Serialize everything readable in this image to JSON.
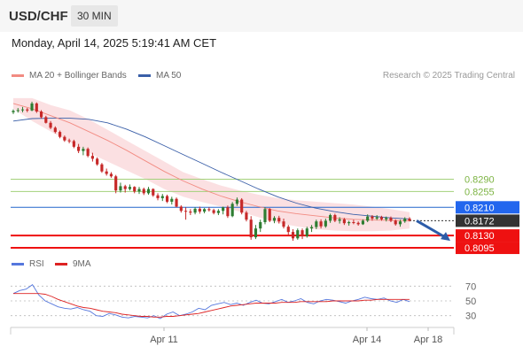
{
  "header": {
    "pair": "USD/CHF",
    "timeframe": "30 MIN"
  },
  "datetime": "Monday, April 14, 2025 5:19:41 AM CET",
  "legend": {
    "ma20_label": "MA 20 + Bollinger Bands",
    "ma50_label": "MA 50",
    "credit": "Research © 2025 Trading Central"
  },
  "rsi_legend": {
    "rsi_label": "RSI",
    "ma9_label": "9MA"
  },
  "colors": {
    "up": "#2e7d32",
    "down": "#c62828",
    "ma20": "#f28b82",
    "ma50": "#3a5fa8",
    "band": "#fadadd",
    "support": "#ee1111",
    "resistance": "#a3d17a",
    "pivot": "#2266cc",
    "last": "#333333",
    "rsi": "#5577dd",
    "rsi_ma": "#dd2222",
    "arrow": "#2d5ca8"
  },
  "chart_data": [
    {
      "type": "candlestick",
      "title": "USD/CHF",
      "timeframe": "30 MIN",
      "ylim": [
        0.8075,
        0.856
      ],
      "x_ticks": [
        "Apr 11",
        "Apr 14",
        "Apr 18"
      ],
      "candles_ohlc": [
        [
          0.848,
          0.8488,
          0.8475,
          0.8484
        ],
        [
          0.8484,
          0.8492,
          0.8479,
          0.8486
        ],
        [
          0.8486,
          0.8495,
          0.848,
          0.8488
        ],
        [
          0.8488,
          0.8492,
          0.848,
          0.8485
        ],
        [
          0.8485,
          0.851,
          0.8483,
          0.8505
        ],
        [
          0.8505,
          0.8508,
          0.8478,
          0.8482
        ],
        [
          0.8482,
          0.8486,
          0.8462,
          0.8466
        ],
        [
          0.8466,
          0.847,
          0.8448,
          0.845
        ],
        [
          0.845,
          0.8455,
          0.8432,
          0.8436
        ],
        [
          0.8436,
          0.844,
          0.842,
          0.8424
        ],
        [
          0.8424,
          0.8428,
          0.8406,
          0.841
        ],
        [
          0.841,
          0.8414,
          0.8396,
          0.84
        ],
        [
          0.84,
          0.8405,
          0.8392,
          0.8398
        ],
        [
          0.8398,
          0.8402,
          0.8378,
          0.8382
        ],
        [
          0.8382,
          0.839,
          0.8364,
          0.837
        ],
        [
          0.837,
          0.8382,
          0.8358,
          0.8376
        ],
        [
          0.8376,
          0.838,
          0.8352,
          0.8356
        ],
        [
          0.8356,
          0.8365,
          0.834,
          0.8348
        ],
        [
          0.8348,
          0.8352,
          0.8328,
          0.8332
        ],
        [
          0.8332,
          0.8336,
          0.8308,
          0.8312
        ],
        [
          0.8312,
          0.832,
          0.83,
          0.8305
        ],
        [
          0.8305,
          0.831,
          0.8294,
          0.8298
        ],
        [
          0.8298,
          0.8302,
          0.825,
          0.8258
        ],
        [
          0.8258,
          0.828,
          0.8252,
          0.827
        ],
        [
          0.827,
          0.8274,
          0.8252,
          0.8262
        ],
        [
          0.8262,
          0.8275,
          0.8258,
          0.8268
        ],
        [
          0.8268,
          0.827,
          0.825,
          0.8255
        ],
        [
          0.8255,
          0.8268,
          0.8248,
          0.8262
        ],
        [
          0.8262,
          0.8266,
          0.8245,
          0.825
        ],
        [
          0.825,
          0.8268,
          0.8246,
          0.8262
        ],
        [
          0.8262,
          0.8264,
          0.824,
          0.8244
        ],
        [
          0.8244,
          0.825,
          0.823,
          0.8236
        ],
        [
          0.8236,
          0.8248,
          0.8228,
          0.8242
        ],
        [
          0.8242,
          0.8246,
          0.8222,
          0.8226
        ],
        [
          0.8226,
          0.824,
          0.8218,
          0.8234
        ],
        [
          0.8234,
          0.8238,
          0.821,
          0.8212
        ],
        [
          0.8212,
          0.8216,
          0.8195,
          0.82
        ],
        [
          0.82,
          0.821,
          0.8175,
          0.8198
        ],
        [
          0.8198,
          0.8205,
          0.8188,
          0.8195
        ],
        [
          0.8195,
          0.821,
          0.819,
          0.8206
        ],
        [
          0.8206,
          0.8212,
          0.8192,
          0.8198
        ],
        [
          0.8198,
          0.8208,
          0.8193,
          0.8205
        ],
        [
          0.8205,
          0.821,
          0.8198,
          0.8202
        ],
        [
          0.8202,
          0.8206,
          0.819,
          0.8194
        ],
        [
          0.8194,
          0.8205,
          0.8188,
          0.82
        ],
        [
          0.82,
          0.8212,
          0.819,
          0.821
        ],
        [
          0.821,
          0.8215,
          0.818,
          0.8185
        ],
        [
          0.8185,
          0.8225,
          0.8182,
          0.822
        ],
        [
          0.822,
          0.8238,
          0.8214,
          0.8232
        ],
        [
          0.8232,
          0.8236,
          0.819,
          0.8195
        ],
        [
          0.8195,
          0.82,
          0.817,
          0.8175
        ],
        [
          0.8175,
          0.8185,
          0.8118,
          0.8125
        ],
        [
          0.8125,
          0.816,
          0.812,
          0.815
        ],
        [
          0.815,
          0.8175,
          0.814,
          0.8168
        ],
        [
          0.8168,
          0.821,
          0.8162,
          0.8205
        ],
        [
          0.8205,
          0.8208,
          0.8168,
          0.8172
        ],
        [
          0.8172,
          0.8185,
          0.8165,
          0.818
        ],
        [
          0.818,
          0.8186,
          0.8164,
          0.817
        ],
        [
          0.817,
          0.8178,
          0.815,
          0.8155
        ],
        [
          0.8155,
          0.816,
          0.813,
          0.814
        ],
        [
          0.814,
          0.8148,
          0.8115,
          0.8122
        ],
        [
          0.8122,
          0.815,
          0.8118,
          0.8145
        ],
        [
          0.8145,
          0.815,
          0.812,
          0.8128
        ],
        [
          0.8128,
          0.8155,
          0.8124,
          0.815
        ],
        [
          0.815,
          0.816,
          0.814,
          0.8154
        ],
        [
          0.8154,
          0.8175,
          0.8148,
          0.817
        ],
        [
          0.817,
          0.8176,
          0.815,
          0.8156
        ],
        [
          0.8156,
          0.8178,
          0.8152,
          0.8172
        ],
        [
          0.8172,
          0.8192,
          0.8166,
          0.8188
        ],
        [
          0.8188,
          0.8192,
          0.8168,
          0.8172
        ],
        [
          0.8172,
          0.8182,
          0.8164,
          0.8176
        ],
        [
          0.8176,
          0.818,
          0.816,
          0.8165
        ],
        [
          0.8165,
          0.8172,
          0.8158,
          0.8168
        ],
        [
          0.8168,
          0.8175,
          0.8162,
          0.8166
        ],
        [
          0.8166,
          0.817,
          0.8158,
          0.8162
        ],
        [
          0.8162,
          0.8176,
          0.816,
          0.8172
        ],
        [
          0.8172,
          0.819,
          0.8168,
          0.8184
        ],
        [
          0.8184,
          0.8188,
          0.8172,
          0.8178
        ],
        [
          0.8178,
          0.8188,
          0.8174,
          0.8182
        ],
        [
          0.8182,
          0.8186,
          0.8172,
          0.8176
        ],
        [
          0.8176,
          0.8184,
          0.817,
          0.818
        ],
        [
          0.818,
          0.8184,
          0.8168,
          0.8172
        ],
        [
          0.8172,
          0.8176,
          0.8158,
          0.8162
        ],
        [
          0.8162,
          0.8175,
          0.8155,
          0.817
        ],
        [
          0.817,
          0.8182,
          0.8166,
          0.8178
        ],
        [
          0.8178,
          0.8182,
          0.817,
          0.8172
        ]
      ],
      "ma20": [
        0.8505,
        0.849,
        0.847,
        0.845,
        0.8425,
        0.84,
        0.8372,
        0.8342,
        0.8312,
        0.8285,
        0.8262,
        0.8242,
        0.8226,
        0.8212,
        0.82,
        0.8192,
        0.8186,
        0.818,
        0.8176,
        0.8174,
        0.8173,
        0.8172
      ],
      "ma50": [
        0.8455,
        0.8462,
        0.8463,
        0.8463,
        0.846,
        0.845,
        0.8432,
        0.841,
        0.8385,
        0.836,
        0.8335,
        0.831,
        0.8286,
        0.8262,
        0.824,
        0.8222,
        0.8208,
        0.8198,
        0.819,
        0.8185,
        0.818,
        0.8177
      ],
      "bollinger_upper": [
        0.852,
        0.852,
        0.85,
        0.8485,
        0.846,
        0.843,
        0.84,
        0.837,
        0.834,
        0.831,
        0.829,
        0.8272,
        0.8258,
        0.8246,
        0.8236,
        0.823,
        0.8226,
        0.8222,
        0.8218,
        0.8212,
        0.8205,
        0.8196
      ],
      "bollinger_lower": [
        0.849,
        0.8455,
        0.8425,
        0.8395,
        0.8365,
        0.834,
        0.8315,
        0.829,
        0.8262,
        0.824,
        0.8225,
        0.8212,
        0.8198,
        0.8182,
        0.8166,
        0.8156,
        0.8148,
        0.8144,
        0.8142,
        0.8142,
        0.8144,
        0.815
      ],
      "levels": [
        {
          "value": 0.829,
          "label": "0.8290",
          "kind": "resistance"
        },
        {
          "value": 0.8255,
          "label": "0.8255",
          "kind": "resistance"
        },
        {
          "value": 0.821,
          "label": "0.8210",
          "kind": "pivot"
        },
        {
          "value": 0.8172,
          "label": "0.8172",
          "kind": "last"
        },
        {
          "value": 0.813,
          "label": "0.8130",
          "kind": "support"
        },
        {
          "value": 0.8095,
          "label": "0.8095",
          "kind": "support"
        }
      ],
      "forecast_arrow": {
        "from": 0.8172,
        "to": 0.813
      }
    },
    {
      "type": "line",
      "title": "RSI",
      "ylim": [
        20,
        80
      ],
      "y_ticks": [
        70,
        50,
        30
      ],
      "series": [
        {
          "name": "RSI",
          "values": [
            60,
            64,
            66,
            72,
            58,
            50,
            46,
            42,
            40,
            39,
            41,
            38,
            36,
            30,
            29,
            33,
            31,
            28,
            27,
            29,
            28,
            27,
            30,
            26,
            32,
            35,
            30,
            32,
            35,
            40,
            38,
            44,
            46,
            48,
            45,
            47,
            44,
            48,
            51,
            47,
            46,
            49,
            52,
            48,
            50,
            53,
            48,
            46,
            50,
            52,
            51,
            49,
            47,
            50,
            52,
            55,
            53,
            52,
            54,
            50,
            48,
            52,
            49
          ]
        },
        {
          "name": "9MA",
          "values": [
            60,
            60,
            60,
            60,
            60,
            59,
            56,
            52,
            49,
            46,
            43,
            41,
            40,
            38,
            36,
            35,
            34,
            32,
            31,
            30,
            29,
            29,
            28,
            28,
            29,
            29,
            30,
            31,
            32,
            33,
            35,
            37,
            39,
            41,
            43,
            44,
            45,
            46,
            47,
            47,
            47,
            47,
            48,
            48,
            48,
            49,
            49,
            49,
            49,
            49,
            50,
            50,
            50,
            50,
            50,
            51,
            51,
            52,
            52,
            52,
            52,
            52,
            52
          ]
        }
      ]
    }
  ]
}
